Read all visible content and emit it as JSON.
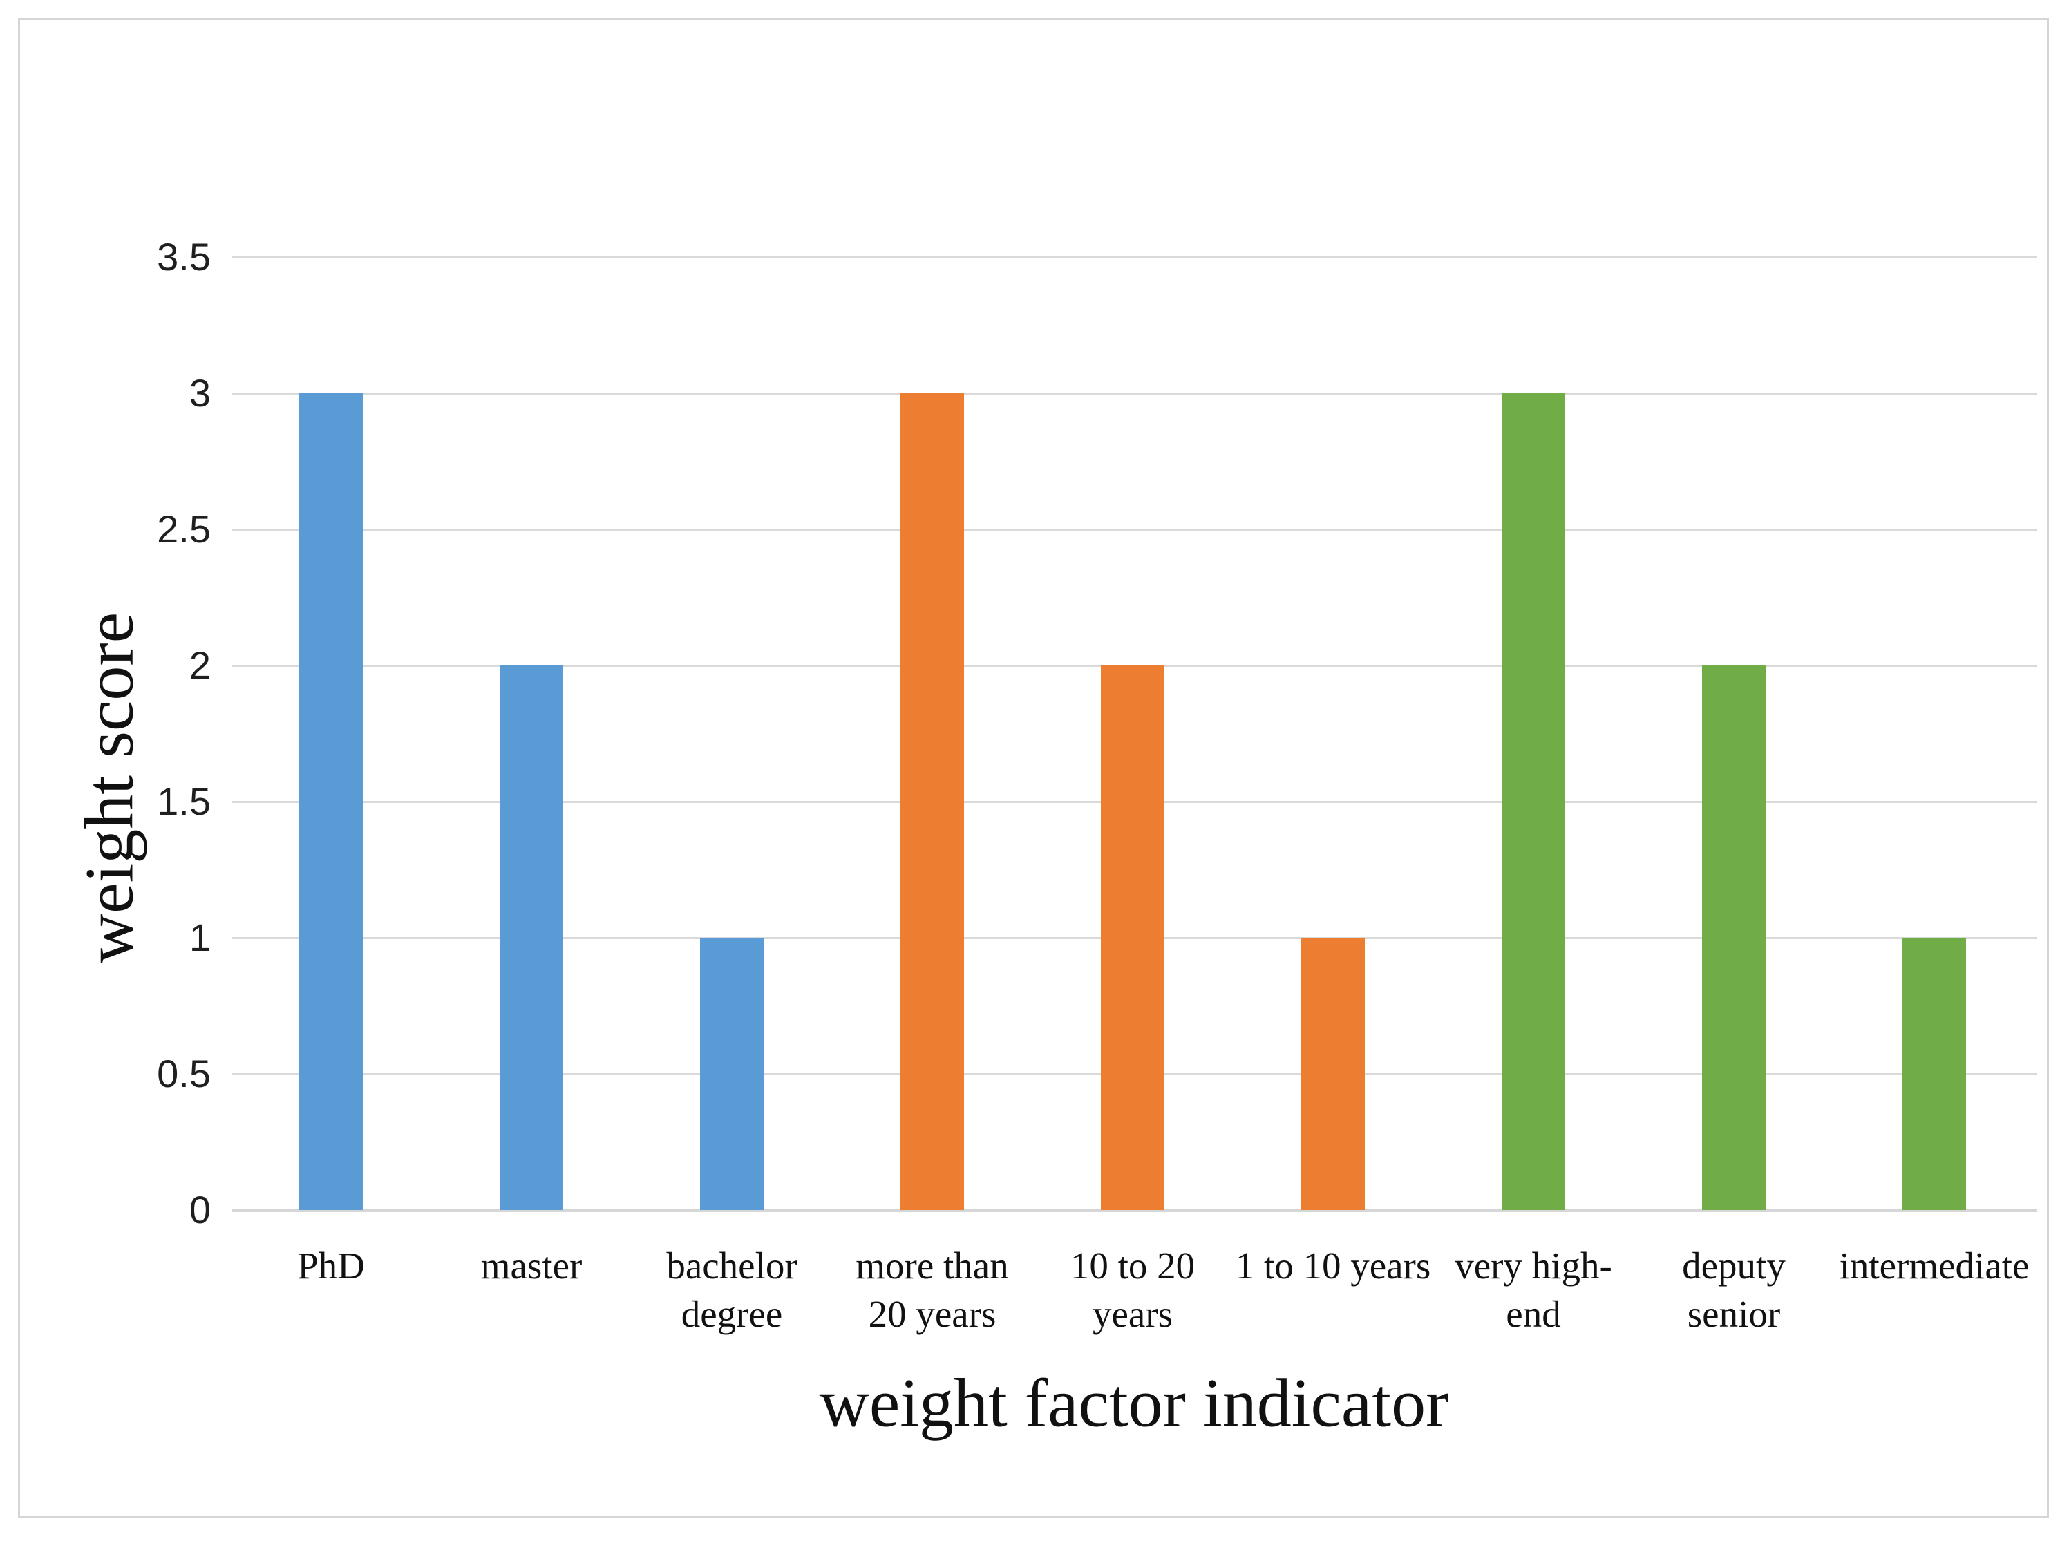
{
  "figure": {
    "background": "#FFFFFF",
    "border_color": "#D5D5D5"
  },
  "chart_data": {
    "type": "bar",
    "title": "",
    "xlabel": "weight factor indicator",
    "ylabel": "weight score",
    "categories": [
      "PhD",
      "master",
      "bachelor degree",
      "more than 20 years",
      "10 to 20 years",
      "1 to 10 years",
      "very high-end",
      "deputy senior",
      "intermediate"
    ],
    "category_lines": [
      [
        "PhD"
      ],
      [
        "master"
      ],
      [
        "bachelor",
        "degree"
      ],
      [
        "more than",
        "20 years"
      ],
      [
        "10 to 20",
        "years"
      ],
      [
        "1 to 10 years"
      ],
      [
        "very high-",
        "end"
      ],
      [
        "deputy",
        "senior"
      ],
      [
        "intermediate"
      ]
    ],
    "values": [
      3,
      2,
      1,
      3,
      2,
      1,
      3,
      2,
      1
    ],
    "bar_colors": [
      "#5B9BD5",
      "#5B9BD5",
      "#5B9BD5",
      "#ED7D31",
      "#ED7D31",
      "#ED7D31",
      "#70AD47",
      "#70AD47",
      "#70AD47"
    ],
    "color_groups": [
      {
        "color": "#5B9BD5",
        "categories": [
          "PhD",
          "master",
          "bachelor degree"
        ]
      },
      {
        "color": "#ED7D31",
        "categories": [
          "more than 20 years",
          "10 to 20 years",
          "1 to 10 years"
        ]
      },
      {
        "color": "#70AD47",
        "categories": [
          "very high-end",
          "deputy senior",
          "intermediate"
        ]
      }
    ],
    "ylim": [
      0,
      3.5
    ],
    "ytick_interval": 0.5,
    "ytick_labels": [
      "0",
      "0.5",
      "1",
      "1.5",
      "2",
      "2.5",
      "3",
      "3.5"
    ],
    "grid": true,
    "legend": "none",
    "gridline_color": "#D9D9D9",
    "text_color": "#1F1F1F"
  }
}
